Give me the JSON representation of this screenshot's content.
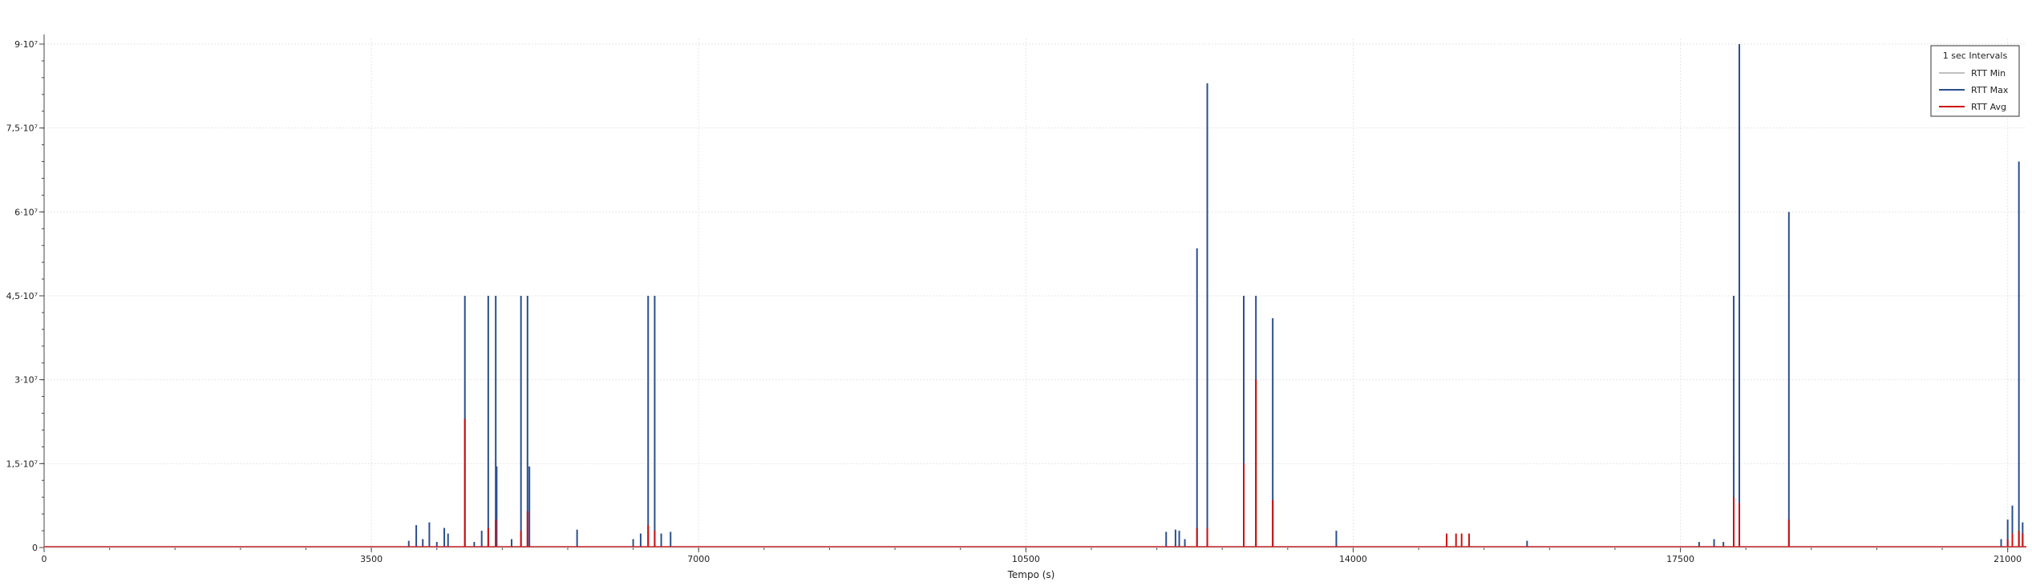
{
  "chart_data": {
    "type": "line",
    "title": "",
    "xlabel": "Tempo (s)",
    "ylabel": "",
    "xlim": [
      0,
      21200
    ],
    "ylim": [
      0,
      90000000
    ],
    "x_ticks": [
      0,
      3500,
      7000,
      10500,
      14000,
      17500,
      21000
    ],
    "x_tick_labels": [
      "0",
      "3500",
      "7000",
      "10500",
      "14000",
      "17500",
      "21000"
    ],
    "y_ticks": [
      0,
      15000000,
      30000000,
      45000000,
      60000000,
      75000000,
      90000000
    ],
    "y_tick_labels": [
      "0",
      "1,5·10⁷",
      "3·10⁷",
      "4,5·10⁷",
      "6·10⁷",
      "7,5·10⁷",
      "9·10⁷"
    ],
    "grid": true,
    "legend": {
      "placement": "top-right",
      "title": "1 sec Intervals"
    },
    "series": [
      {
        "name": "RTT Min",
        "color": "#c0c0c0",
        "points": [
          [
            0,
            0
          ],
          [
            21200,
            0
          ]
        ]
      },
      {
        "name": "RTT Max",
        "color": "#2a4f8f",
        "points": [
          [
            3900,
            1200000
          ],
          [
            3980,
            4000000
          ],
          [
            4050,
            1500000
          ],
          [
            4120,
            4500000
          ],
          [
            4200,
            1000000
          ],
          [
            4280,
            3500000
          ],
          [
            4320,
            2500000
          ],
          [
            4500,
            45000000
          ],
          [
            4600,
            1000000
          ],
          [
            4680,
            3000000
          ],
          [
            4750,
            45000000
          ],
          [
            4830,
            45000000
          ],
          [
            4840,
            14500000
          ],
          [
            5000,
            1500000
          ],
          [
            5100,
            45000000
          ],
          [
            5170,
            45000000
          ],
          [
            5190,
            14500000
          ],
          [
            5700,
            3200000
          ],
          [
            6300,
            1500000
          ],
          [
            6380,
            2500000
          ],
          [
            6460,
            45000000
          ],
          [
            6530,
            45000000
          ],
          [
            6600,
            2500000
          ],
          [
            6700,
            2800000
          ],
          [
            12000,
            2800000
          ],
          [
            12100,
            3200000
          ],
          [
            12140,
            3000000
          ],
          [
            12200,
            1500000
          ],
          [
            12330,
            53500000
          ],
          [
            12440,
            83000000
          ],
          [
            12830,
            45000000
          ],
          [
            12960,
            45000000
          ],
          [
            13140,
            41000000
          ],
          [
            13820,
            3000000
          ],
          [
            15860,
            1200000
          ],
          [
            17700,
            1000000
          ],
          [
            17860,
            1500000
          ],
          [
            17960,
            1000000
          ],
          [
            18070,
            45000000
          ],
          [
            18130,
            90000000
          ],
          [
            18660,
            60000000
          ],
          [
            20930,
            1500000
          ],
          [
            21000,
            5000000
          ],
          [
            21050,
            7500000
          ],
          [
            21120,
            69000000
          ],
          [
            21160,
            4500000
          ]
        ]
      },
      {
        "name": "RTT Avg",
        "color": "#cc1111",
        "points": [
          [
            4500,
            23000000
          ],
          [
            4750,
            3500000
          ],
          [
            4830,
            5000000
          ],
          [
            5100,
            3000000
          ],
          [
            5170,
            6500000
          ],
          [
            6460,
            4000000
          ],
          [
            6530,
            3000000
          ],
          [
            12330,
            3500000
          ],
          [
            12440,
            3500000
          ],
          [
            12830,
            15000000
          ],
          [
            12960,
            30000000
          ],
          [
            13140,
            8500000
          ],
          [
            15000,
            2500000
          ],
          [
            15100,
            2500000
          ],
          [
            15160,
            2500000
          ],
          [
            15240,
            2500000
          ],
          [
            18070,
            9000000
          ],
          [
            18130,
            8000000
          ],
          [
            18660,
            5000000
          ],
          [
            21000,
            1500000
          ],
          [
            21050,
            2500000
          ],
          [
            21120,
            3000000
          ],
          [
            21160,
            2500000
          ]
        ]
      }
    ]
  }
}
